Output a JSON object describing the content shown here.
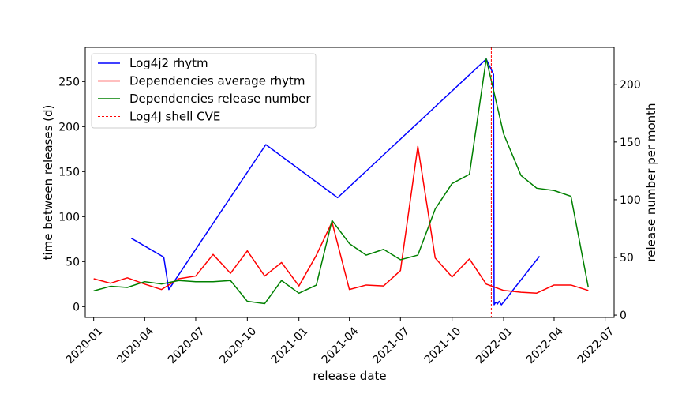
{
  "chart_data": {
    "type": "line",
    "xlabel": "release date",
    "ylabel_left": "time between releases (d)",
    "ylabel_right": "release number per month",
    "xlim": [
      "2019-12-17",
      "2022-07-17"
    ],
    "ylim_left": [
      -12,
      288
    ],
    "ylim_right": [
      -2,
      232
    ],
    "x_ticks": [
      "2020-01",
      "2020-04",
      "2020-07",
      "2020-10",
      "2021-01",
      "2021-04",
      "2021-07",
      "2021-10",
      "2022-01",
      "2022-04",
      "2022-07"
    ],
    "x_tick_dates": [
      "2020-01-01",
      "2020-04-01",
      "2020-07-01",
      "2020-10-01",
      "2021-01-01",
      "2021-04-01",
      "2021-07-01",
      "2021-10-01",
      "2022-01-01",
      "2022-04-01",
      "2022-07-01"
    ],
    "y_left_ticks": [
      0,
      50,
      100,
      150,
      200,
      250
    ],
    "y_right_ticks": [
      0,
      50,
      100,
      150,
      200
    ],
    "legend_position": "top-left",
    "grid": false,
    "series": [
      {
        "name": "Log4j2 rhytm",
        "axis": "left",
        "color": "#0000ff",
        "style": "solid",
        "x": [
          "2020-03-08",
          "2020-05-05",
          "2020-05-14",
          "2020-11-03",
          "2021-03-11",
          "2021-12-01",
          "2021-12-14",
          "2021-12-15",
          "2021-12-18",
          "2021-12-21",
          "2021-12-24",
          "2021-12-28",
          "2022-03-06"
        ],
        "y": [
          76,
          55,
          19,
          180,
          121,
          275,
          258,
          2,
          5,
          3,
          6,
          2,
          56
        ]
      },
      {
        "name": "Dependencies average rhytm",
        "axis": "left",
        "color": "#ff0000",
        "style": "solid",
        "x": [
          "2020-01-01",
          "2020-01-31",
          "2020-03-01",
          "2020-04-01",
          "2020-05-01",
          "2020-06-01",
          "2020-07-01",
          "2020-08-01",
          "2020-09-01",
          "2020-10-01",
          "2020-11-01",
          "2020-12-01",
          "2021-01-01",
          "2021-02-01",
          "2021-03-01",
          "2021-04-01",
          "2021-05-01",
          "2021-06-01",
          "2021-07-01",
          "2021-08-01",
          "2021-09-01",
          "2021-10-01",
          "2021-11-01",
          "2021-12-01",
          "2022-01-01",
          "2022-02-01",
          "2022-03-01",
          "2022-04-01",
          "2022-05-01",
          "2022-06-01"
        ],
        "y": [
          31,
          26,
          32,
          25,
          19,
          31,
          34,
          58,
          37,
          62,
          34,
          49,
          23,
          57,
          94,
          19,
          24,
          23,
          40,
          178,
          54,
          33,
          53,
          25,
          18,
          16,
          15,
          24,
          24,
          18
        ]
      },
      {
        "name": "Dependencies release number",
        "axis": "right",
        "color": "#008000",
        "style": "solid",
        "x": [
          "2020-01-01",
          "2020-01-31",
          "2020-03-01",
          "2020-04-01",
          "2020-05-01",
          "2020-06-01",
          "2020-07-01",
          "2020-08-01",
          "2020-09-01",
          "2020-10-01",
          "2020-11-01",
          "2020-12-01",
          "2021-01-01",
          "2021-02-01",
          "2021-03-01",
          "2021-04-01",
          "2021-05-01",
          "2021-06-01",
          "2021-07-01",
          "2021-08-01",
          "2021-09-01",
          "2021-10-01",
          "2021-11-01",
          "2021-12-01",
          "2022-01-01",
          "2022-02-01",
          "2022-03-01",
          "2022-04-01",
          "2022-05-01",
          "2022-06-01"
        ],
        "y": [
          21,
          25,
          24,
          29,
          27,
          30,
          29,
          29,
          30,
          12,
          10,
          30,
          19,
          26,
          82,
          62,
          52,
          57,
          48,
          52,
          92,
          114,
          122,
          222,
          157,
          121,
          110,
          108,
          103,
          24
        ]
      },
      {
        "name": "Log4J shell CVE",
        "axis": "left",
        "color": "#ff0000",
        "style": "dashed",
        "vertical_x": "2021-12-10"
      }
    ]
  }
}
